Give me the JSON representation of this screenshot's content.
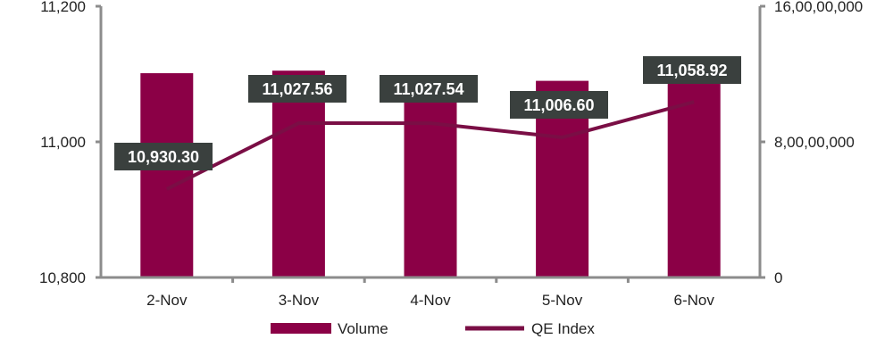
{
  "colors": {
    "bar": "#8B0046",
    "line": "#7A0E45",
    "label_bg": "#3A403E",
    "axis": "#8c8c8c"
  },
  "chart_data": {
    "type": "bar",
    "title": "",
    "xlabel": "",
    "ylabel": "",
    "categories": [
      "2-Nov",
      "3-Nov",
      "4-Nov",
      "5-Nov",
      "6-Nov"
    ],
    "series": [
      {
        "name": "Volume",
        "type": "bar",
        "axis": "right",
        "values": [
          120500000,
          122000000,
          106000000,
          116000000,
          117500000
        ]
      },
      {
        "name": "QE Index",
        "type": "line",
        "axis": "left",
        "values": [
          10930.3,
          11027.56,
          11027.54,
          11006.6,
          11058.92
        ],
        "data_labels": [
          "10,930.30",
          "11,027.56",
          "11,027.54",
          "11,006.60",
          "11,058.92"
        ]
      }
    ],
    "left_axis": {
      "ylim": [
        10800,
        11200
      ],
      "ticks": [
        "10,800",
        "11,000",
        "11,200"
      ]
    },
    "right_axis": {
      "ylim": [
        0,
        160000000
      ],
      "ticks": [
        "0",
        "8,00,00,000",
        "16,00,00,000"
      ]
    },
    "grid": false,
    "legend_position": "bottom"
  },
  "legend": [
    {
      "label": "Volume",
      "kind": "bar"
    },
    {
      "label": "QE Index",
      "kind": "line"
    }
  ]
}
